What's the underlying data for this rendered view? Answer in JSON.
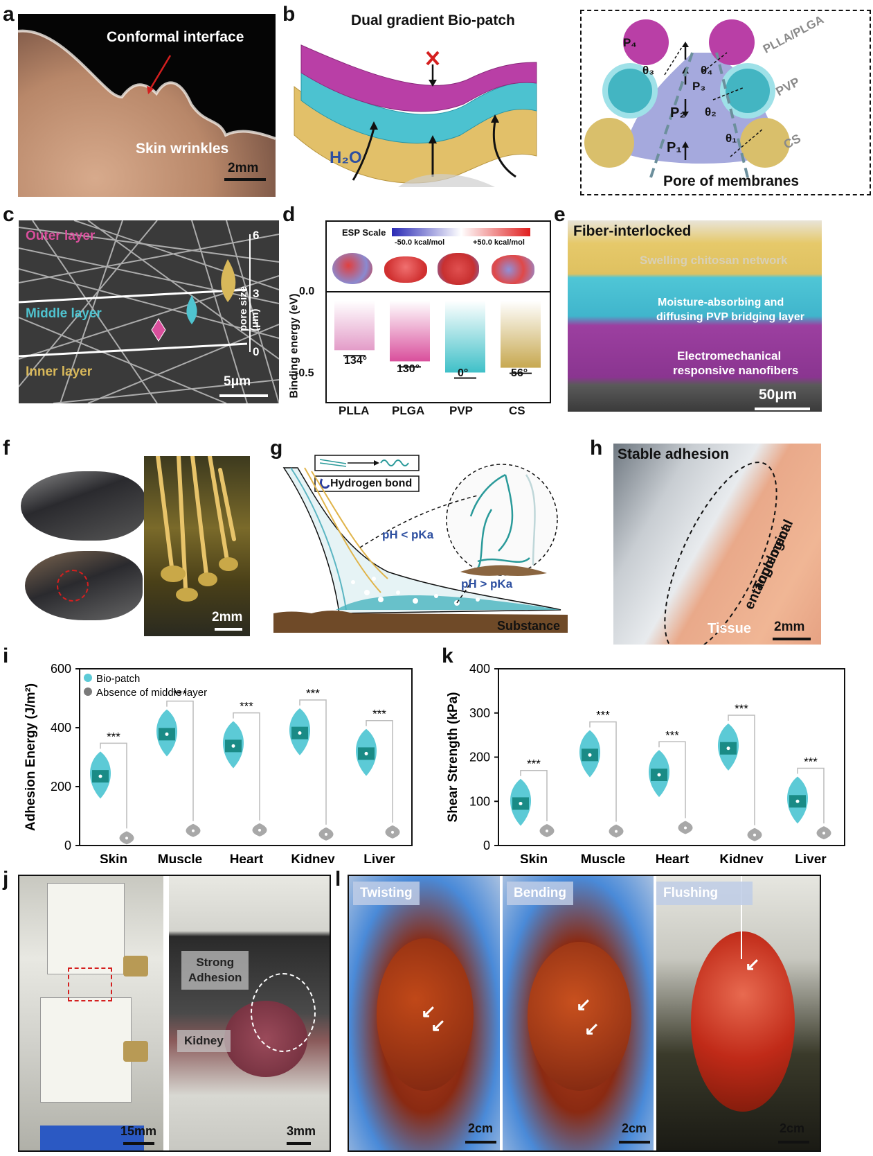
{
  "panels": {
    "a": {
      "label": "a",
      "title": "Conformal interface",
      "caption": "Skin wrinkles",
      "scale": "2mm"
    },
    "b": {
      "label": "b",
      "title": "Dual gradient Bio-patch",
      "water": "H₂O",
      "pore_title": "Pore of membranes",
      "layers": [
        "PLLA/PLGA",
        "PVP",
        "CS"
      ],
      "symbols": {
        "P4": "P₄",
        "P3": "P₃",
        "P2": "P₂",
        "P1": "P₁",
        "t1": "θ₁",
        "t2": "θ₂",
        "t3": "θ₃",
        "t4": "θ₄"
      }
    },
    "c": {
      "label": "c",
      "outer": "Outer layer",
      "middle": "Middle layer",
      "inner": "Inner layer",
      "axis": "pore size (μm)",
      "tick_top": "6",
      "tick_mid": "3",
      "tick_bot": "0",
      "scale": "5μm"
    },
    "d": {
      "label": "d",
      "esp": "ESP Scale",
      "esp_min": "-50.0 kcal/mol",
      "esp_max": "+50.0 kcal/mol",
      "ylabel": "Binding energy (eV)",
      "yticks": [
        "0.0",
        "-0.5"
      ],
      "categories": [
        "PLLA",
        "PLGA",
        "PVP",
        "CS"
      ],
      "angles": [
        "134°",
        "130°",
        "0°",
        "56°"
      ],
      "values": [
        -0.31,
        -0.38,
        -0.45,
        -0.42
      ]
    },
    "e": {
      "label": "e",
      "title": "Fiber-interlocked",
      "l1": "Swelling chitosan network",
      "l2a": "Moisture-absorbing and",
      "l2b": "diffusing PVP bridging layer",
      "l3a": "Electromechanical",
      "l3b": "responsive nanofibers",
      "scale": "50μm"
    },
    "f": {
      "label": "f",
      "scale": "2mm"
    },
    "g": {
      "label": "g",
      "hbond": "Hydrogen bond",
      "ph1": "pH < pKa",
      "ph2": "pH > pKa",
      "substance": "Substance"
    },
    "h": {
      "label": "h",
      "title": "Stable adhesion",
      "topo1": "Topological",
      "topo2": "entanglement",
      "tissue": "Tissue",
      "scale": "2mm"
    },
    "j": {
      "label": "j",
      "strong1": "Strong",
      "strong2": "Adhesion",
      "kidney": "Kidney",
      "scale1": "15mm",
      "scale2": "3mm"
    },
    "l": {
      "label": "l",
      "twisting": "Twisting",
      "bending": "Bending",
      "flushing": "Flushing",
      "scale": "2cm"
    }
  },
  "chart_data": [
    {
      "panel": "i",
      "type": "violin",
      "ylabel": "Adhesion Energy (J/m²)",
      "ylim": [
        0,
        600
      ],
      "yticks": [
        0,
        200,
        400,
        600
      ],
      "categories": [
        "Skin",
        "Muscle",
        "Heart",
        "Kidney",
        "Liver"
      ],
      "legend": [
        "Bio-patch",
        "Absence of middle layer"
      ],
      "significance": "***",
      "series": [
        {
          "name": "Bio-patch",
          "values": [
            235,
            378,
            338,
            382,
            312
          ]
        },
        {
          "name": "Absence of middle layer",
          "values": [
            25,
            50,
            52,
            38,
            45
          ]
        }
      ]
    },
    {
      "panel": "k",
      "type": "violin",
      "ylabel": "Shear Strength (kPa)",
      "ylim": [
        0,
        400
      ],
      "yticks": [
        0,
        100,
        200,
        300,
        400
      ],
      "categories": [
        "Skin",
        "Muscle",
        "Heart",
        "Kidney",
        "Liver"
      ],
      "significance": "***",
      "series": [
        {
          "name": "Bio-patch",
          "values": [
            95,
            205,
            160,
            220,
            100
          ]
        },
        {
          "name": "Absence of middle layer",
          "values": [
            33,
            32,
            40,
            24,
            28
          ]
        }
      ]
    }
  ],
  "colors": {
    "teal": "#4fc3cf",
    "darkteal": "#1b8e8a",
    "magenta": "#b0409a",
    "pink": "#d94f9c",
    "gold": "#d8b85a",
    "violet": "#a5a9dd",
    "grey": "#8f8f8f"
  }
}
